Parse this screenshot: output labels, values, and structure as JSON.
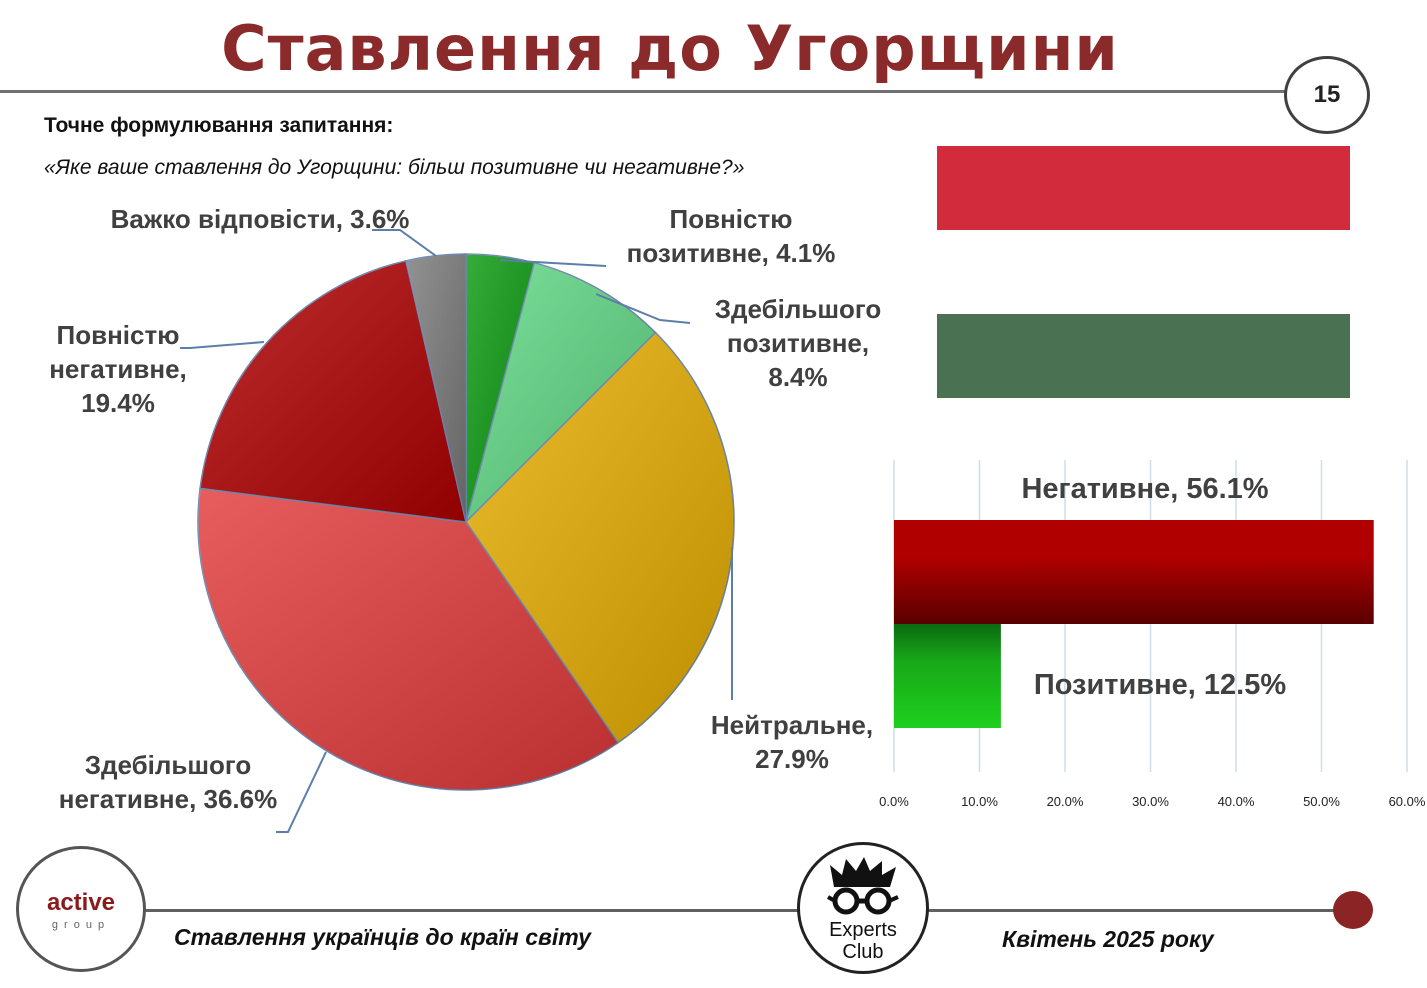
{
  "header": {
    "title": "Ставлення до Угорщини",
    "page_number": "15"
  },
  "question": {
    "label": "Точне формулювання запитання:",
    "text": "«Яке ваше ставлення до Угорщини: більш позитивне чи негативне?»"
  },
  "colors": {
    "title": "#8b2a2a",
    "legend_top": "#d12b3c",
    "legend_bottom": "#4a7152",
    "negative_bar": "#b00000",
    "positive_bar": "#18a818"
  },
  "chart_data": [
    {
      "type": "pie",
      "slices": [
        {
          "label": "Повністю позитивне, 4.1%",
          "value": 4.1,
          "color": "#0a9a10"
        },
        {
          "label": "Здебільшого позитивне, 8.4%",
          "value": 8.4,
          "color": "#5fd884"
        },
        {
          "label": "Нейтральне, 27.9%",
          "value": 27.9,
          "color": "#e6ad00"
        },
        {
          "label": "Здебільшого негативне, 36.6%",
          "value": 36.6,
          "color": "#e23a3a"
        },
        {
          "label": "Повністю негативне, 19.4%",
          "value": 19.4,
          "color": "#b00000"
        },
        {
          "label": "Важко відповісти, 3.6%",
          "value": 3.6,
          "color": "#7a7a7a"
        }
      ],
      "start_angle": "12 o'clock",
      "direction": "clockwise"
    },
    {
      "type": "bar",
      "orientation": "horizontal",
      "categories": [
        "Негативне, 56.1%",
        "Позитивне, 12.5%"
      ],
      "values": [
        56.1,
        12.5
      ],
      "colors": [
        "#b00000",
        "#18a818"
      ],
      "x_ticks": [
        "0.0%",
        "10.0%",
        "20.0%",
        "30.0%",
        "40.0%",
        "50.0%",
        "60.0%"
      ],
      "xlim": [
        0,
        60
      ],
      "grid": "vertical"
    }
  ],
  "footer": {
    "left": "Ставлення українців до країн світу",
    "right": "Квітень 2025 року",
    "logo_left_word": "active",
    "logo_left_sub": "group",
    "logo_right_line1": "Experts",
    "logo_right_line2": "Club"
  }
}
